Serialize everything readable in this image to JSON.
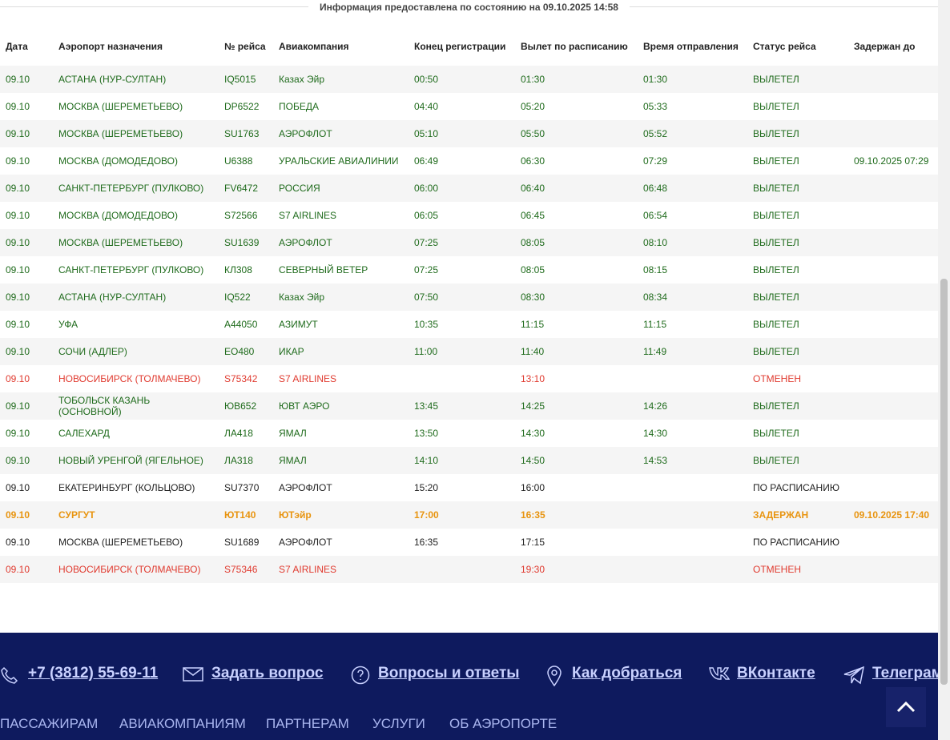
{
  "header": {
    "info": "Информация предоставлена по состоянию на 09.10.2025 14:58"
  },
  "table": {
    "columns": [
      "Дата",
      "Аэропорт назначения",
      "№ рейса",
      "Авиакомпания",
      "Конец регистрации",
      "Вылет по расписанию",
      "Время отправления",
      "Статус рейса",
      "Задержан до"
    ],
    "rows": [
      {
        "color": "#1f6b1c",
        "cells": [
          "09.10",
          "АСТАНА (НУР-СУЛТАН)",
          "IQ5015",
          "Казах Эйр",
          "00:50",
          "01:30",
          "01:30",
          "ВЫЛЕТЕЛ",
          null
        ]
      },
      {
        "color": "#1f6b1c",
        "cells": [
          "09.10",
          "МОСКВА (ШЕРЕМЕТЬЕВО)",
          "DP6522",
          "ПОБЕДА",
          "04:40",
          "05:20",
          "05:33",
          "ВЫЛЕТЕЛ",
          null
        ]
      },
      {
        "color": "#1f6b1c",
        "cells": [
          "09.10",
          "МОСКВА (ШЕРЕМЕТЬЕВО)",
          "SU1763",
          "АЭРОФЛОТ",
          "05:10",
          "05:50",
          "05:52",
          "ВЫЛЕТЕЛ",
          null
        ]
      },
      {
        "color": "#1f6b1c",
        "cells": [
          "09.10",
          "МОСКВА (ДОМОДЕДОВО)",
          "U6388",
          "УРАЛЬСКИЕ АВИАЛИНИИ",
          "06:49",
          "06:30",
          "07:29",
          "ВЫЛЕТЕЛ",
          "09.10.2025 07:29"
        ]
      },
      {
        "color": "#1f6b1c",
        "cells": [
          "09.10",
          "САНКТ-ПЕТЕРБУРГ (ПУЛКОВО)",
          "FV6472",
          "РОССИЯ",
          "06:00",
          "06:40",
          "06:48",
          "ВЫЛЕТЕЛ",
          null
        ]
      },
      {
        "color": "#1f6b1c",
        "cells": [
          "09.10",
          "МОСКВА (ДОМОДЕДОВО)",
          "S72566",
          "S7 AIRLINES",
          "06:05",
          "06:45",
          "06:54",
          "ВЫЛЕТЕЛ",
          null
        ]
      },
      {
        "color": "#1f6b1c",
        "cells": [
          "09.10",
          "МОСКВА (ШЕРЕМЕТЬЕВО)",
          "SU1639",
          "АЭРОФЛОТ",
          "07:25",
          "08:05",
          "08:10",
          "ВЫЛЕТЕЛ",
          null
        ]
      },
      {
        "color": "#1f6b1c",
        "cells": [
          "09.10",
          "САНКТ-ПЕТЕРБУРГ (ПУЛКОВО)",
          "КЛ308",
          "СЕВЕРНЫЙ ВЕТЕР",
          "07:25",
          "08:05",
          "08:15",
          "ВЫЛЕТЕЛ",
          null
        ]
      },
      {
        "color": "#1f6b1c",
        "cells": [
          "09.10",
          "АСТАНА (НУР-СУЛТАН)",
          "IQ522",
          "Казах Эйр",
          "07:50",
          "08:30",
          "08:34",
          "ВЫЛЕТЕЛ",
          null
        ]
      },
      {
        "color": "#1f6b1c",
        "cells": [
          "09.10",
          "УФА",
          "А44050",
          "АЗИМУТ",
          "10:35",
          "11:15",
          "11:15",
          "ВЫЛЕТЕЛ",
          null
        ]
      },
      {
        "color": "#1f6b1c",
        "cells": [
          "09.10",
          "СОЧИ (АДЛЕР)",
          "ЕО480",
          "ИКАР",
          "11:00",
          "11:40",
          "11:49",
          "ВЫЛЕТЕЛ",
          null
        ]
      },
      {
        "color": "#e03a2f",
        "cells": [
          "09.10",
          "НОВОСИБИРСК (ТОЛМАЧЕВО)",
          "S75342",
          "S7 AIRLINES",
          null,
          "13:10",
          null,
          "ОТМЕНЕН",
          null
        ]
      },
      {
        "color": "#1f6b1c",
        "cells": [
          "09.10",
          "ТОБОЛЬСК КАЗАНЬ (ОСНОВНОЙ)",
          "ЮВ652",
          "ЮВТ АЭРО",
          "13:45",
          "14:25",
          "14:26",
          "ВЫЛЕТЕЛ",
          null
        ]
      },
      {
        "color": "#1f6b1c",
        "cells": [
          "09.10",
          "САЛЕХАРД",
          "ЛА418",
          "ЯМАЛ",
          "13:50",
          "14:30",
          "14:30",
          "ВЫЛЕТЕЛ",
          null
        ]
      },
      {
        "color": "#1f6b1c",
        "cells": [
          "09.10",
          "НОВЫЙ УРЕНГОЙ (ЯГЕЛЬНОЕ)",
          "ЛА318",
          "ЯМАЛ",
          "14:10",
          "14:50",
          "14:53",
          "ВЫЛЕТЕЛ",
          null
        ]
      },
      {
        "color": "#222222",
        "cells": [
          "09.10",
          "ЕКАТЕРИНБУРГ (КОЛЬЦОВО)",
          "SU7370",
          "АЭРОФЛОТ",
          "15:20",
          "16:00",
          null,
          "ПО РАСПИСАНИЮ",
          null
        ]
      },
      {
        "color": "#e8940f",
        "bold": true,
        "cells": [
          "09.10",
          "СУРГУТ",
          "ЮТ140",
          "ЮТэйр",
          "17:00",
          "16:35",
          null,
          "ЗАДЕРЖАН",
          "09.10.2025 17:40"
        ]
      },
      {
        "color": "#222222",
        "cells": [
          "09.10",
          "МОСКВА (ШЕРЕМЕТЬЕВО)",
          "SU1689",
          "АЭРОФЛОТ",
          "16:35",
          "17:15",
          null,
          "ПО РАСПИСАНИЮ",
          null
        ]
      },
      {
        "color": "#e03a2f",
        "cells": [
          "09.10",
          "НОВОСИБИРСК (ТОЛМАЧЕВО)",
          "S75346",
          "S7 AIRLINES",
          null,
          "19:30",
          null,
          "ОТМЕНЕН",
          null
        ]
      }
    ]
  },
  "footer": {
    "contacts": [
      "+7 (3812) 55-69-11",
      "Задать вопрос",
      "Вопросы и ответы",
      "Как добраться",
      "ВКонтакте",
      "Телеграм"
    ],
    "menu": [
      "ПАССАЖИРАМ",
      "АВИАКОМПАНИЯМ",
      "ПАРТНЕРАМ",
      "УСЛУГИ",
      "ОБ АЭРОПОРТЕ"
    ]
  }
}
